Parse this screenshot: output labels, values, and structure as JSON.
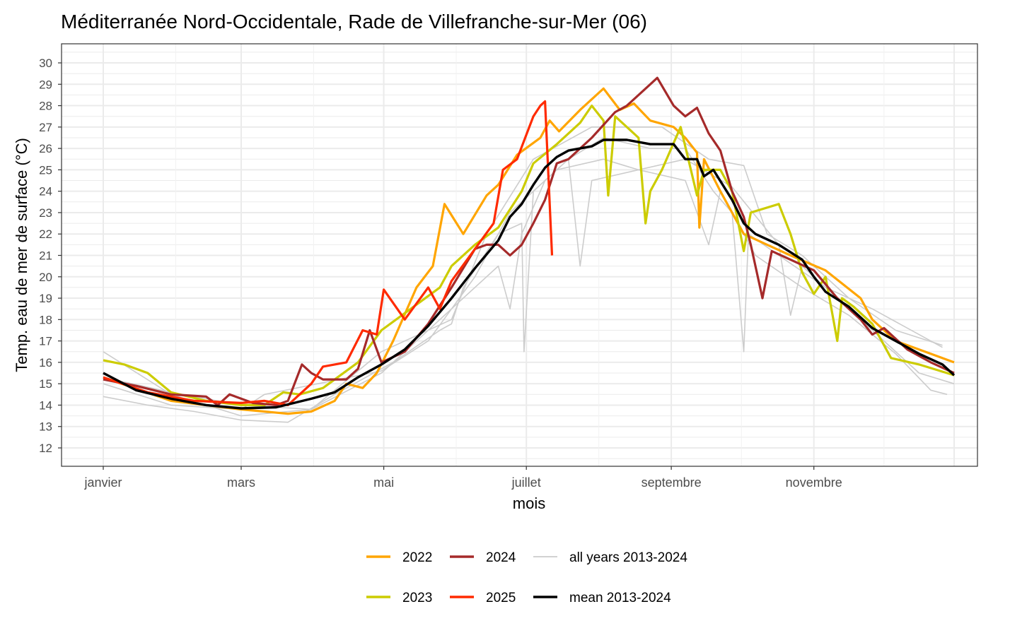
{
  "chart_data": {
    "type": "line",
    "title": "Méditerranée Nord-Occidentale, Rade de Villefranche-sur-Mer (06)",
    "xlabel": "mois",
    "ylabel": "Temp. eau de mer de surface (°C)",
    "ylim": [
      12,
      30
    ],
    "xlim_day_of_year": [
      1,
      365
    ],
    "yticks": [
      12,
      13,
      14,
      15,
      16,
      17,
      18,
      19,
      20,
      21,
      22,
      23,
      24,
      25,
      26,
      27,
      28,
      29,
      30
    ],
    "xticks": [
      {
        "day": 1,
        "label": "janvier"
      },
      {
        "day": 60,
        "label": "mars"
      },
      {
        "day": 121,
        "label": "mai"
      },
      {
        "day": 182,
        "label": "juillet"
      },
      {
        "day": 244,
        "label": "septembre"
      },
      {
        "day": 305,
        "label": "novembre"
      }
    ],
    "grid": true,
    "legend_position": "bottom",
    "series": [
      {
        "name": "all years 2013-2024",
        "color": "#cccccc",
        "width": 1.6,
        "legend": true,
        "group": "all",
        "points": [
          [
            1,
            16.5
          ],
          [
            30,
            14.5
          ],
          [
            60,
            13.5
          ],
          [
            90,
            13.8
          ],
          [
            120,
            15.5
          ],
          [
            150,
            18.5
          ],
          [
            170,
            20.5
          ],
          [
            175,
            18.5
          ],
          [
            180,
            22.0
          ],
          [
            190,
            24.5
          ],
          [
            200,
            25.5
          ],
          [
            215,
            26.5
          ],
          [
            235,
            26.0
          ],
          [
            250,
            26.0
          ],
          [
            262,
            24.0
          ],
          [
            270,
            23.0
          ],
          [
            275,
            16.5
          ],
          [
            277,
            22.0
          ],
          [
            290,
            21.0
          ],
          [
            310,
            19.5
          ],
          [
            330,
            18.5
          ],
          [
            360,
            16.7
          ]
        ]
      },
      {
        "name": "",
        "color": "#cccccc",
        "width": 1.6,
        "legend": false,
        "group": "all",
        "points": [
          [
            1,
            14.4
          ],
          [
            20,
            14.0
          ],
          [
            40,
            13.7
          ],
          [
            60,
            13.3
          ],
          [
            80,
            13.2
          ],
          [
            100,
            14.5
          ],
          [
            125,
            16.0
          ],
          [
            145,
            17.5
          ],
          [
            150,
            17.8
          ],
          [
            155,
            19.5
          ],
          [
            170,
            22.0
          ],
          [
            180,
            22.5
          ],
          [
            181,
            16.5
          ],
          [
            185,
            24.0
          ],
          [
            200,
            25.5
          ],
          [
            205,
            20.5
          ],
          [
            210,
            24.5
          ],
          [
            230,
            25.0
          ],
          [
            250,
            24.5
          ],
          [
            260,
            21.5
          ],
          [
            265,
            24.0
          ],
          [
            280,
            21.0
          ],
          [
            300,
            19.5
          ],
          [
            320,
            18.2
          ],
          [
            340,
            16.4
          ],
          [
            355,
            14.7
          ],
          [
            362,
            14.5
          ]
        ]
      },
      {
        "name": "",
        "color": "#cccccc",
        "width": 1.6,
        "legend": false,
        "group": "all",
        "points": [
          [
            1,
            15.0
          ],
          [
            30,
            14.0
          ],
          [
            60,
            13.8
          ],
          [
            70,
            14.5
          ],
          [
            120,
            15.6
          ],
          [
            140,
            17.0
          ],
          [
            160,
            20.0
          ],
          [
            175,
            23.0
          ],
          [
            195,
            25.0
          ],
          [
            215,
            25.5
          ],
          [
            230,
            25.0
          ],
          [
            250,
            25.5
          ],
          [
            270,
            24.2
          ],
          [
            290,
            21.5
          ],
          [
            295,
            18.2
          ],
          [
            300,
            20.5
          ],
          [
            330,
            17.5
          ],
          [
            350,
            15.5
          ],
          [
            365,
            15.0
          ]
        ]
      },
      {
        "name": "",
        "color": "#cccccc",
        "width": 1.6,
        "legend": false,
        "group": "all",
        "points": [
          [
            1,
            15.3
          ],
          [
            30,
            14.6
          ],
          [
            60,
            14.0
          ],
          [
            90,
            13.8
          ],
          [
            120,
            16.5
          ],
          [
            150,
            18.0
          ],
          [
            165,
            22.0
          ],
          [
            185,
            25.5
          ],
          [
            210,
            27.0
          ],
          [
            240,
            27.0
          ],
          [
            260,
            25.5
          ],
          [
            275,
            25.2
          ],
          [
            285,
            22.0
          ],
          [
            300,
            21.0
          ],
          [
            320,
            19.0
          ],
          [
            340,
            17.5
          ],
          [
            360,
            16.8
          ]
        ]
      },
      {
        "name": "2022",
        "color": "#ffa500",
        "width": 3.2,
        "legend": true,
        "points": [
          [
            1,
            15.3
          ],
          [
            30,
            14.2
          ],
          [
            60,
            13.8
          ],
          [
            80,
            13.6
          ],
          [
            90,
            13.7
          ],
          [
            100,
            14.2
          ],
          [
            105,
            15.0
          ],
          [
            112,
            14.8
          ],
          [
            118,
            15.5
          ],
          [
            125,
            17.0
          ],
          [
            135,
            19.5
          ],
          [
            142,
            20.5
          ],
          [
            147,
            23.4
          ],
          [
            155,
            22.0
          ],
          [
            165,
            23.8
          ],
          [
            170,
            24.3
          ],
          [
            178,
            25.7
          ],
          [
            188,
            26.5
          ],
          [
            192,
            27.3
          ],
          [
            196,
            26.8
          ],
          [
            205,
            27.8
          ],
          [
            215,
            28.8
          ],
          [
            222,
            27.8
          ],
          [
            228,
            28.1
          ],
          [
            235,
            27.3
          ],
          [
            245,
            27.0
          ],
          [
            250,
            26.5
          ],
          [
            255,
            25.8
          ],
          [
            256,
            22.3
          ],
          [
            258,
            25.5
          ],
          [
            265,
            24.0
          ],
          [
            270,
            23.0
          ],
          [
            275,
            22.0
          ],
          [
            285,
            21.5
          ],
          [
            295,
            21.0
          ],
          [
            310,
            20.3
          ],
          [
            325,
            19.0
          ],
          [
            330,
            18.0
          ],
          [
            340,
            17.0
          ],
          [
            355,
            16.4
          ],
          [
            365,
            16.0
          ]
        ]
      },
      {
        "name": "2023",
        "color": "#cccc00",
        "width": 3.2,
        "legend": true,
        "points": [
          [
            1,
            16.1
          ],
          [
            10,
            15.9
          ],
          [
            20,
            15.5
          ],
          [
            30,
            14.6
          ],
          [
            45,
            14.2
          ],
          [
            60,
            14.0
          ],
          [
            70,
            14.0
          ],
          [
            78,
            14.6
          ],
          [
            85,
            14.5
          ],
          [
            95,
            14.8
          ],
          [
            110,
            16.0
          ],
          [
            120,
            17.5
          ],
          [
            130,
            18.3
          ],
          [
            145,
            19.5
          ],
          [
            150,
            20.5
          ],
          [
            160,
            21.5
          ],
          [
            170,
            22.3
          ],
          [
            180,
            24.0
          ],
          [
            185,
            25.3
          ],
          [
            195,
            26.2
          ],
          [
            205,
            27.2
          ],
          [
            210,
            28.0
          ],
          [
            215,
            27.3
          ],
          [
            217,
            23.8
          ],
          [
            220,
            27.5
          ],
          [
            230,
            26.5
          ],
          [
            233,
            22.5
          ],
          [
            235,
            24.0
          ],
          [
            240,
            25.0
          ],
          [
            248,
            27.0
          ],
          [
            255,
            23.8
          ],
          [
            258,
            25.0
          ],
          [
            265,
            25.0
          ],
          [
            270,
            24.0
          ],
          [
            275,
            21.2
          ],
          [
            278,
            23.0
          ],
          [
            290,
            23.4
          ],
          [
            295,
            22.0
          ],
          [
            300,
            20.2
          ],
          [
            305,
            19.2
          ],
          [
            310,
            20.0
          ],
          [
            315,
            17.0
          ],
          [
            317,
            19.0
          ],
          [
            322,
            18.6
          ],
          [
            330,
            17.8
          ],
          [
            338,
            16.2
          ],
          [
            350,
            15.9
          ],
          [
            365,
            15.4
          ]
        ]
      },
      {
        "name": "2024",
        "color": "#a52a2a",
        "width": 3.2,
        "legend": true,
        "points": [
          [
            1,
            15.2
          ],
          [
            15,
            14.9
          ],
          [
            30,
            14.5
          ],
          [
            45,
            14.4
          ],
          [
            50,
            14.0
          ],
          [
            55,
            14.5
          ],
          [
            65,
            14.1
          ],
          [
            75,
            14.0
          ],
          [
            80,
            14.2
          ],
          [
            86,
            15.9
          ],
          [
            90,
            15.5
          ],
          [
            95,
            15.2
          ],
          [
            105,
            15.2
          ],
          [
            110,
            15.7
          ],
          [
            115,
            17.5
          ],
          [
            120,
            16.0
          ],
          [
            130,
            16.5
          ],
          [
            140,
            17.8
          ],
          [
            150,
            19.5
          ],
          [
            160,
            21.3
          ],
          [
            165,
            21.5
          ],
          [
            170,
            21.5
          ],
          [
            175,
            21.0
          ],
          [
            180,
            21.5
          ],
          [
            185,
            22.5
          ],
          [
            190,
            23.6
          ],
          [
            195,
            25.3
          ],
          [
            200,
            25.5
          ],
          [
            210,
            26.5
          ],
          [
            220,
            27.7
          ],
          [
            225,
            28.0
          ],
          [
            235,
            29.0
          ],
          [
            238,
            29.3
          ],
          [
            245,
            28.0
          ],
          [
            250,
            27.5
          ],
          [
            255,
            27.9
          ],
          [
            260,
            26.7
          ],
          [
            265,
            25.9
          ],
          [
            270,
            24.0
          ],
          [
            275,
            22.8
          ],
          [
            278,
            21.5
          ],
          [
            283,
            19.0
          ],
          [
            287,
            21.2
          ],
          [
            295,
            20.8
          ],
          [
            305,
            20.3
          ],
          [
            315,
            19.0
          ],
          [
            325,
            18.0
          ],
          [
            330,
            17.3
          ],
          [
            335,
            17.6
          ],
          [
            345,
            16.6
          ],
          [
            355,
            16.0
          ],
          [
            365,
            15.5
          ]
        ]
      },
      {
        "name": "2025",
        "color": "#ff2a00",
        "width": 3.2,
        "legend": true,
        "points": [
          [
            1,
            15.3
          ],
          [
            20,
            14.6
          ],
          [
            40,
            14.2
          ],
          [
            60,
            14.1
          ],
          [
            70,
            14.2
          ],
          [
            80,
            14.0
          ],
          [
            90,
            15.0
          ],
          [
            95,
            15.8
          ],
          [
            105,
            16.0
          ],
          [
            112,
            17.5
          ],
          [
            118,
            17.3
          ],
          [
            121,
            19.4
          ],
          [
            130,
            18.0
          ],
          [
            140,
            19.5
          ],
          [
            145,
            18.5
          ],
          [
            150,
            19.8
          ],
          [
            160,
            21.3
          ],
          [
            168,
            22.5
          ],
          [
            172,
            25.0
          ],
          [
            178,
            25.5
          ],
          [
            185,
            27.5
          ],
          [
            188,
            28.0
          ],
          [
            190,
            28.2
          ],
          [
            193,
            21.0
          ]
        ]
      },
      {
        "name": "mean 2013-2024",
        "color": "#000000",
        "width": 3.4,
        "legend": true,
        "points": [
          [
            1,
            15.5
          ],
          [
            15,
            14.7
          ],
          [
            30,
            14.3
          ],
          [
            45,
            14.0
          ],
          [
            60,
            13.85
          ],
          [
            75,
            13.9
          ],
          [
            90,
            14.3
          ],
          [
            100,
            14.6
          ],
          [
            110,
            15.3
          ],
          [
            120,
            15.9
          ],
          [
            130,
            16.6
          ],
          [
            140,
            17.7
          ],
          [
            150,
            19.0
          ],
          [
            160,
            20.4
          ],
          [
            170,
            21.7
          ],
          [
            175,
            22.8
          ],
          [
            180,
            23.4
          ],
          [
            185,
            24.3
          ],
          [
            190,
            25.1
          ],
          [
            195,
            25.6
          ],
          [
            200,
            25.9
          ],
          [
            210,
            26.1
          ],
          [
            215,
            26.4
          ],
          [
            225,
            26.4
          ],
          [
            235,
            26.2
          ],
          [
            245,
            26.2
          ],
          [
            250,
            25.5
          ],
          [
            255,
            25.5
          ],
          [
            258,
            24.7
          ],
          [
            262,
            25.0
          ],
          [
            270,
            23.6
          ],
          [
            275,
            22.5
          ],
          [
            280,
            22.0
          ],
          [
            290,
            21.5
          ],
          [
            300,
            20.8
          ],
          [
            305,
            20.0
          ],
          [
            310,
            19.3
          ],
          [
            320,
            18.6
          ],
          [
            330,
            17.6
          ],
          [
            340,
            17.0
          ],
          [
            350,
            16.4
          ],
          [
            360,
            15.9
          ],
          [
            365,
            15.4
          ]
        ]
      }
    ],
    "legend_rows": [
      [
        "2022",
        "2024",
        "all years 2013-2024"
      ],
      [
        "2023",
        "2025",
        "mean 2013-2024"
      ]
    ]
  }
}
